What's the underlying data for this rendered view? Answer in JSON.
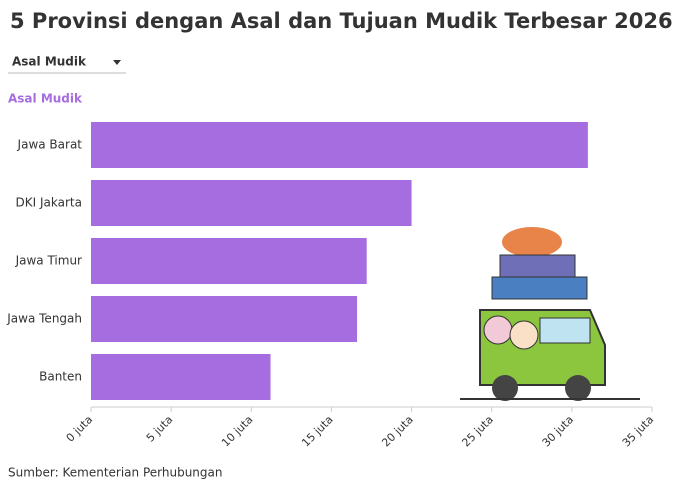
{
  "chart_data": {
    "type": "bar",
    "orientation": "horizontal",
    "title": "5 Provinsi dengan Asal dan Tujuan Mudik Terbesar 2026",
    "dropdown": "Asal Mudik",
    "series_label": "Asal Mudik",
    "source": "Sumber: Kementerian Perhubungan",
    "categories": [
      "Jawa Barat",
      "DKI Jakarta",
      "Jawa Timur",
      "Jawa Tengah",
      "Banten"
    ],
    "values": [
      31.0,
      20.0,
      17.2,
      16.6,
      11.2
    ],
    "color": "#a66de0",
    "xlim": [
      0,
      35
    ],
    "xticks": [
      {
        "value": 0,
        "label": "0 juta"
      },
      {
        "value": 5,
        "label": "5 juta"
      },
      {
        "value": 10,
        "label": "10 juta"
      },
      {
        "value": 15,
        "label": "15 juta"
      },
      {
        "value": 20,
        "label": "20 juta"
      },
      {
        "value": 25,
        "label": "25 juta"
      },
      {
        "value": 30,
        "label": "30 juta"
      },
      {
        "value": 35,
        "label": "35 juta"
      }
    ]
  }
}
